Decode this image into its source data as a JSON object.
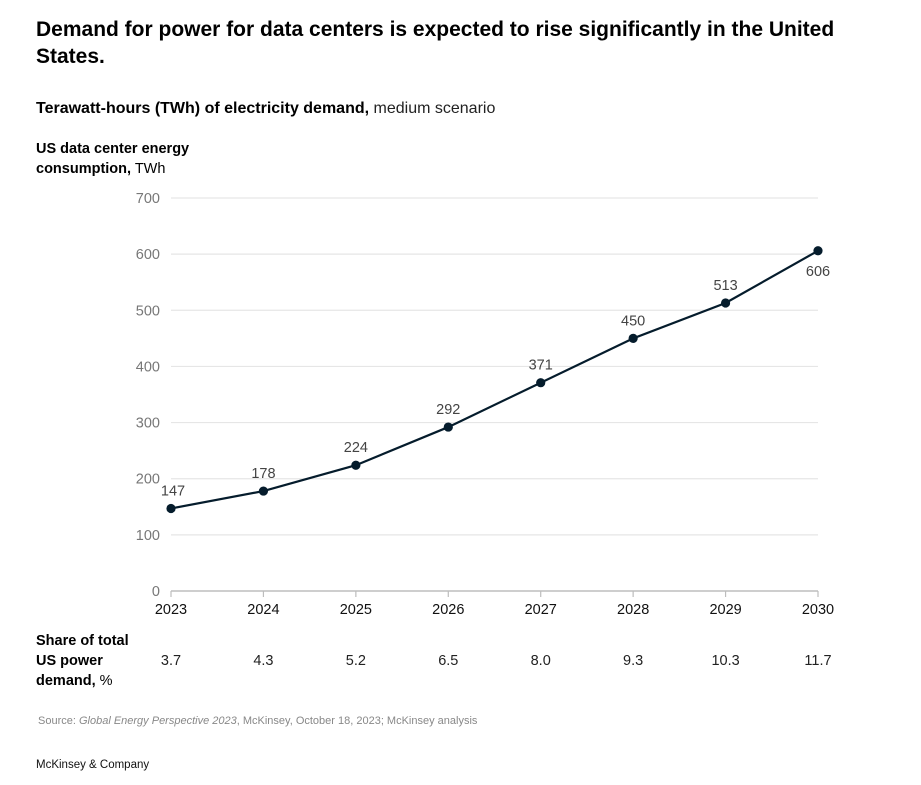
{
  "header": {
    "title": "Demand for power for data centers is expected to rise significantly in the United States.",
    "subtitle_bold": "Terawatt-hours (TWh) of electricity demand,",
    "subtitle_light": " medium scenario"
  },
  "chart_data": {
    "type": "line",
    "title": "Demand for power for data centers is expected to rise significantly in the United States.",
    "subtitle": "Terawatt-hours (TWh) of electricity demand, medium scenario",
    "ylabel_bold": "US data center energy consumption,",
    "ylabel_unit": " TWh",
    "xlabel": "",
    "x": [
      "2023",
      "2024",
      "2025",
      "2026",
      "2027",
      "2028",
      "2029",
      "2030"
    ],
    "series": [
      {
        "name": "US data center energy consumption",
        "values": [
          147,
          178,
          224,
          292,
          371,
          450,
          513,
          606
        ]
      }
    ],
    "data_labels": [
      "147",
      "178",
      "224",
      "292",
      "371",
      "450",
      "513",
      "606"
    ],
    "ylim": [
      0,
      700
    ],
    "yticks": [
      0,
      100,
      200,
      300,
      400,
      500,
      600,
      700
    ],
    "grid": true,
    "line_color": "#051c2c",
    "share_of_total": {
      "label_bold": "Share of total US power demand,",
      "label_unit": " %",
      "values": [
        "3.7",
        "4.3",
        "5.2",
        "6.5",
        "8.0",
        "9.3",
        "10.3",
        "11.7"
      ]
    }
  },
  "footer": {
    "source_prefix": "Source: ",
    "source_italic": "Global Energy Perspective 2023",
    "source_rest": ", McKinsey, October 18, 2023; McKinsey analysis",
    "brand": "McKinsey & Company"
  }
}
